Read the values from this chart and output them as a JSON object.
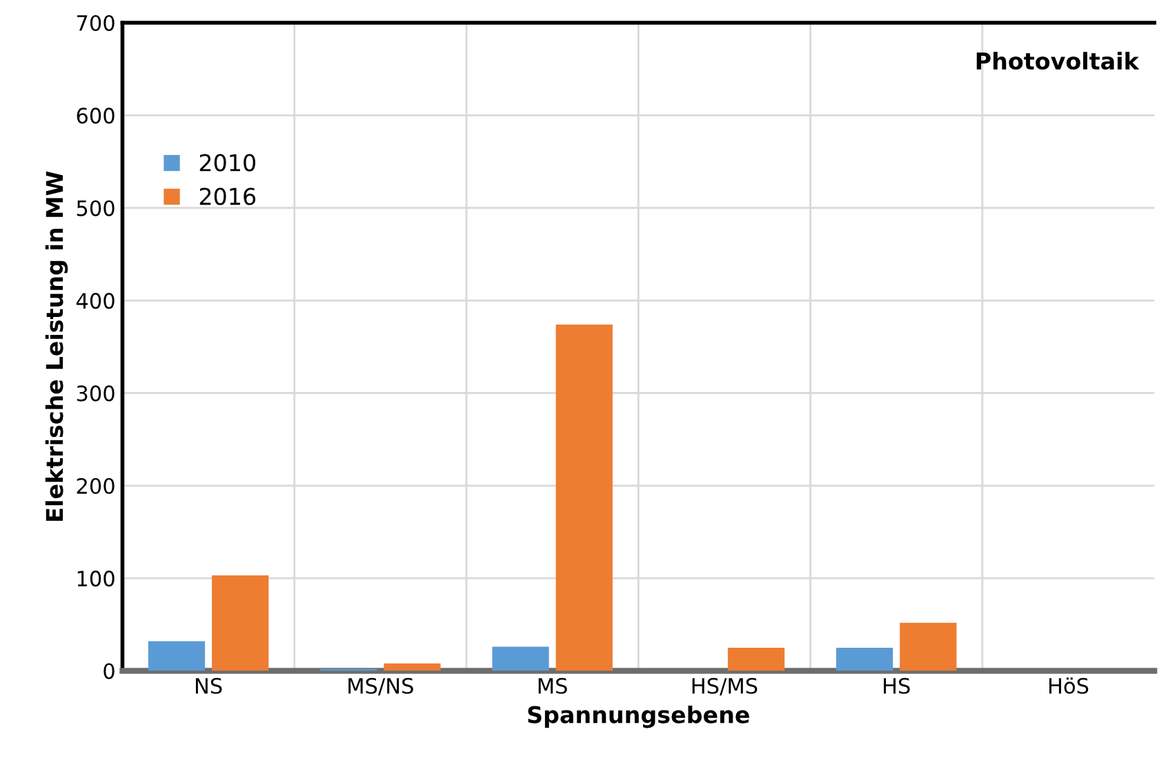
{
  "chart_data": {
    "type": "bar",
    "title": "Photovoltaik",
    "xlabel": "Spannungsebene",
    "ylabel": "Elektrische Leistung in MW",
    "categories": [
      "NS",
      "MS/NS",
      "MS",
      "HS/MS",
      "HS",
      "HöS"
    ],
    "series": [
      {
        "name": "2010",
        "color": "#5b9bd5",
        "values": [
          32,
          2,
          26,
          0,
          25,
          0
        ]
      },
      {
        "name": "2016",
        "color": "#ed7d31",
        "values": [
          103,
          8,
          374,
          25,
          52,
          0
        ]
      }
    ],
    "ylim": [
      0,
      700
    ],
    "yticks": [
      0,
      100,
      200,
      300,
      400,
      500,
      600,
      700
    ],
    "grid": true,
    "legend": "top left"
  }
}
